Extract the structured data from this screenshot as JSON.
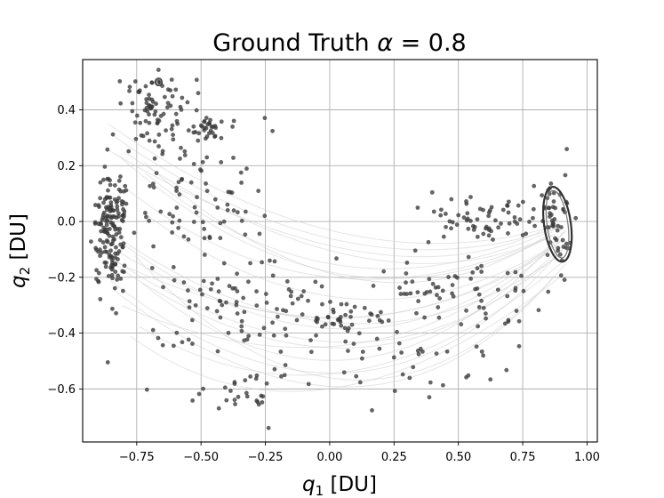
{
  "chart_data": {
    "type": "scatter",
    "title": "Ground Truth α = 0.8",
    "title_prefix": "Ground Truth ",
    "title_symbol": "α",
    "title_suffix": " = 0.8",
    "xlabel_var": "q",
    "xlabel_sub": "1",
    "xlabel_unit": " [DU]",
    "ylabel_var": "q",
    "ylabel_sub": "2",
    "ylabel_unit": " [DU]",
    "xlim": [
      -0.96,
      1.04
    ],
    "ylim": [
      -0.79,
      0.58
    ],
    "xticks": [
      -0.75,
      -0.5,
      -0.25,
      0.0,
      0.25,
      0.5,
      0.75,
      1.0
    ],
    "yticks": [
      -0.6,
      -0.4,
      -0.2,
      0.0,
      0.2,
      0.4
    ],
    "xtick_labels": [
      "−0.75",
      "−0.50",
      "−0.25",
      "0.00",
      "0.25",
      "0.50",
      "0.75",
      "1.00"
    ],
    "ytick_labels": [
      "−0.6",
      "−0.4",
      "−0.2",
      "0.0",
      "0.2",
      "0.4"
    ],
    "grid": true,
    "marker_color": "#3a3a3a",
    "trajectory_color": "#cfcfcf",
    "orbits": [
      {
        "name": "",
        "center": [
          -0.665,
          0.5
        ],
        "radius": [
          0.012,
          0.012
        ]
      },
      {
        "name": "",
        "center": [
          0.885,
          -0.01
        ],
        "radius": [
          0.052,
          0.135
        ]
      }
    ],
    "clusters": [
      {
        "label": "",
        "center": [
          -0.85,
          -0.02
        ],
        "spread": [
          0.035,
          0.12
        ],
        "count": 160
      },
      {
        "label": "",
        "center": [
          -0.68,
          0.4
        ],
        "spread": [
          0.07,
          0.06
        ],
        "count": 80
      },
      {
        "label": "",
        "center": [
          -0.47,
          0.34
        ],
        "spread": [
          0.05,
          0.02
        ],
        "count": 30
      },
      {
        "label": "",
        "center": [
          0.62,
          0.01
        ],
        "spread": [
          0.12,
          0.04
        ],
        "count": 70
      },
      {
        "label": "",
        "center": [
          0.88,
          -0.02
        ],
        "spread": [
          0.03,
          0.1
        ],
        "count": 50
      },
      {
        "label": "",
        "center": [
          -0.55,
          0.1
        ],
        "spread": [
          0.15,
          0.15
        ],
        "count": 90
      },
      {
        "label": "",
        "center": [
          -0.35,
          -0.3
        ],
        "spread": [
          0.18,
          0.08
        ],
        "count": 80
      },
      {
        "label": "",
        "center": [
          0.05,
          -0.34
        ],
        "spread": [
          0.1,
          0.03
        ],
        "count": 40
      },
      {
        "label": "",
        "center": [
          0.4,
          -0.25
        ],
        "spread": [
          0.12,
          0.05
        ],
        "count": 50
      },
      {
        "label": "",
        "center": [
          -0.35,
          -0.62
        ],
        "spread": [
          0.12,
          0.05
        ],
        "count": 30
      },
      {
        "label": "",
        "center": [
          0.25,
          -0.5
        ],
        "spread": [
          0.2,
          0.1
        ],
        "count": 40
      },
      {
        "label": "",
        "center": [
          0.72,
          -0.28
        ],
        "spread": [
          0.08,
          0.08
        ],
        "count": 20
      }
    ]
  }
}
